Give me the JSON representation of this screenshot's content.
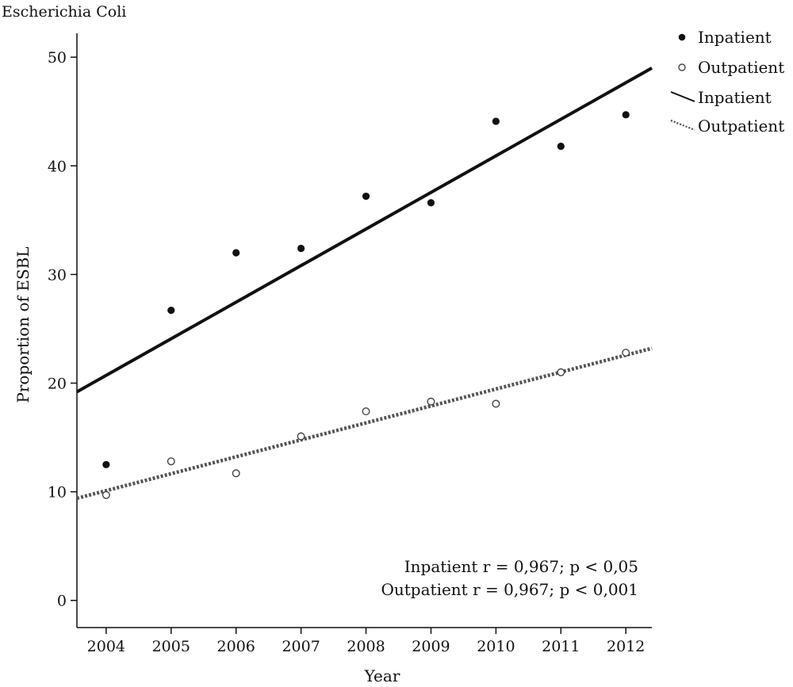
{
  "chart_data": {
    "type": "scatter",
    "title": "Escherichia Coli",
    "xlabel": "Year",
    "ylabel": "Proportion of ESBL",
    "xlim": [
      2003.55,
      2012.4
    ],
    "ylim": [
      -2.5,
      52.2
    ],
    "x_ticks": [
      2004,
      2005,
      2006,
      2007,
      2008,
      2009,
      2010,
      2011,
      2012
    ],
    "y_ticks": [
      0,
      10,
      20,
      30,
      40,
      50
    ],
    "grid": false,
    "legend_position": "top-right",
    "series": [
      {
        "name": "Inpatient",
        "kind": "points",
        "marker": "filled-circle",
        "x": [
          2004,
          2005,
          2006,
          2007,
          2008,
          2009,
          2010,
          2011,
          2012
        ],
        "y": [
          12.5,
          26.7,
          32.0,
          32.4,
          37.2,
          36.6,
          44.1,
          41.8,
          44.7
        ]
      },
      {
        "name": "Outpatient",
        "kind": "points",
        "marker": "open-circle",
        "x": [
          2004,
          2005,
          2006,
          2007,
          2008,
          2009,
          2010,
          2011,
          2012
        ],
        "y": [
          9.7,
          12.8,
          11.7,
          15.1,
          17.4,
          18.3,
          18.1,
          21.0,
          22.8
        ]
      },
      {
        "name": "Inpatient",
        "kind": "fit-line",
        "style": "solid",
        "x": [
          2003.55,
          2012.4
        ],
        "y": [
          19.2,
          49.0
        ]
      },
      {
        "name": "Outpatient",
        "kind": "fit-line",
        "style": "dotted",
        "x": [
          2003.55,
          2012.4
        ],
        "y": [
          9.4,
          23.2
        ]
      }
    ],
    "annotations": [
      "Inpatient r = 0,967; p < 0,05",
      "Outpatient r = 0,967; p < 0,001"
    ]
  }
}
